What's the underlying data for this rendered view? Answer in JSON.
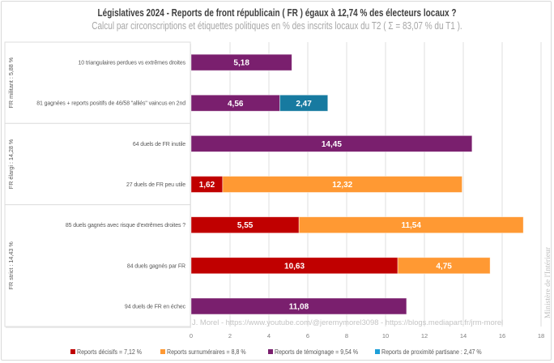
{
  "title": "Législatives 2024 - Reports de front républicain ( FR ) égaux à 12,74 % des électeurs locaux ?",
  "subtitle": "Calcul par circonscriptions et étiquettes politiques en % des inscrits locaux du T2 ( Σ = 83,07 % du T1 ).",
  "credit": "J. Morel - https://www.youtube.com/@jeremymorel3098 - https://blogs.mediapart.fr/jrm-morel",
  "source_watermark": "Ministère de l'Intérieur",
  "legend": [
    {
      "label": "Reports décisifs = 7,12 %",
      "color": "#C00000"
    },
    {
      "label": "Reports surnuméraires = 8,8 %",
      "color": "#FF9933"
    },
    {
      "label": "Reports de témoignage = 9,54 %",
      "color": "#7A1F6E"
    },
    {
      "label": "Reports de proximité partisane : 2,47 %",
      "color": "#177AA0"
    }
  ],
  "chart_data": {
    "type": "bar",
    "orientation": "horizontal",
    "stacked": true,
    "title": "Législatives 2024 - Reports de front républicain ( FR ) égaux à 12,74 % des électeurs locaux ?",
    "subtitle": "Calcul par circonscriptions et étiquettes politiques en % des inscrits locaux du T2 ( Σ = 83,07 % du T1 ).",
    "xlabel": "",
    "ylabel": "",
    "xlim": [
      0,
      18
    ],
    "xticks": [
      0,
      2,
      4,
      6,
      8,
      10,
      12,
      14,
      16,
      18
    ],
    "xtick_labels": [
      "0",
      "2",
      "4",
      "6",
      "8",
      "10",
      "12",
      "14",
      "16",
      "18"
    ],
    "grid": true,
    "legend_position": "bottom",
    "categories": [
      "10 triangulaires perdues vs extrêmes droites",
      "81 gagnées + reports positifs de 46/58 \"alliés\" vaincus en 2nd",
      "64 duels de FR inutile",
      "27 duels de FR peu utile",
      "85 duels gagnés avec risque d'extrêmes droites ?",
      "84 duels gagnés par FR",
      "94 duels de FR en échec"
    ],
    "groups": [
      {
        "label": "FR militant : 5,88 %",
        "first": 0,
        "last": 1
      },
      {
        "label": "FR élargi : 14,28 %",
        "first": 2,
        "last": 3
      },
      {
        "label": "FR strict : 14,43 %",
        "first": 4,
        "last": 6
      }
    ],
    "series": [
      {
        "name": "Reports décisifs = 7,12 %",
        "color": "#C00000",
        "values": [
          null,
          null,
          null,
          1.62,
          5.55,
          10.63,
          null
        ],
        "labels": [
          null,
          null,
          null,
          "1,62",
          "5,55",
          "10,63",
          null
        ]
      },
      {
        "name": "Reports surnuméraires = 8,8 %",
        "color": "#FF9933",
        "values": [
          null,
          null,
          null,
          12.32,
          11.54,
          4.75,
          null
        ],
        "labels": [
          null,
          null,
          null,
          "12,32",
          "11,54",
          "4,75",
          null
        ]
      },
      {
        "name": "Reports de témoignage = 9,54 %",
        "color": "#7A1F6E",
        "values": [
          5.18,
          4.56,
          14.45,
          null,
          null,
          null,
          11.08
        ],
        "labels": [
          "5,18",
          "4,56",
          "14,45",
          null,
          null,
          null,
          "11,08"
        ]
      },
      {
        "name": "Reports de proximité partisane : 2,47 %",
        "color": "#177AA0",
        "values": [
          null,
          2.47,
          null,
          null,
          null,
          null,
          null
        ],
        "labels": [
          null,
          "2,47",
          null,
          null,
          null,
          null,
          null
        ]
      }
    ]
  }
}
